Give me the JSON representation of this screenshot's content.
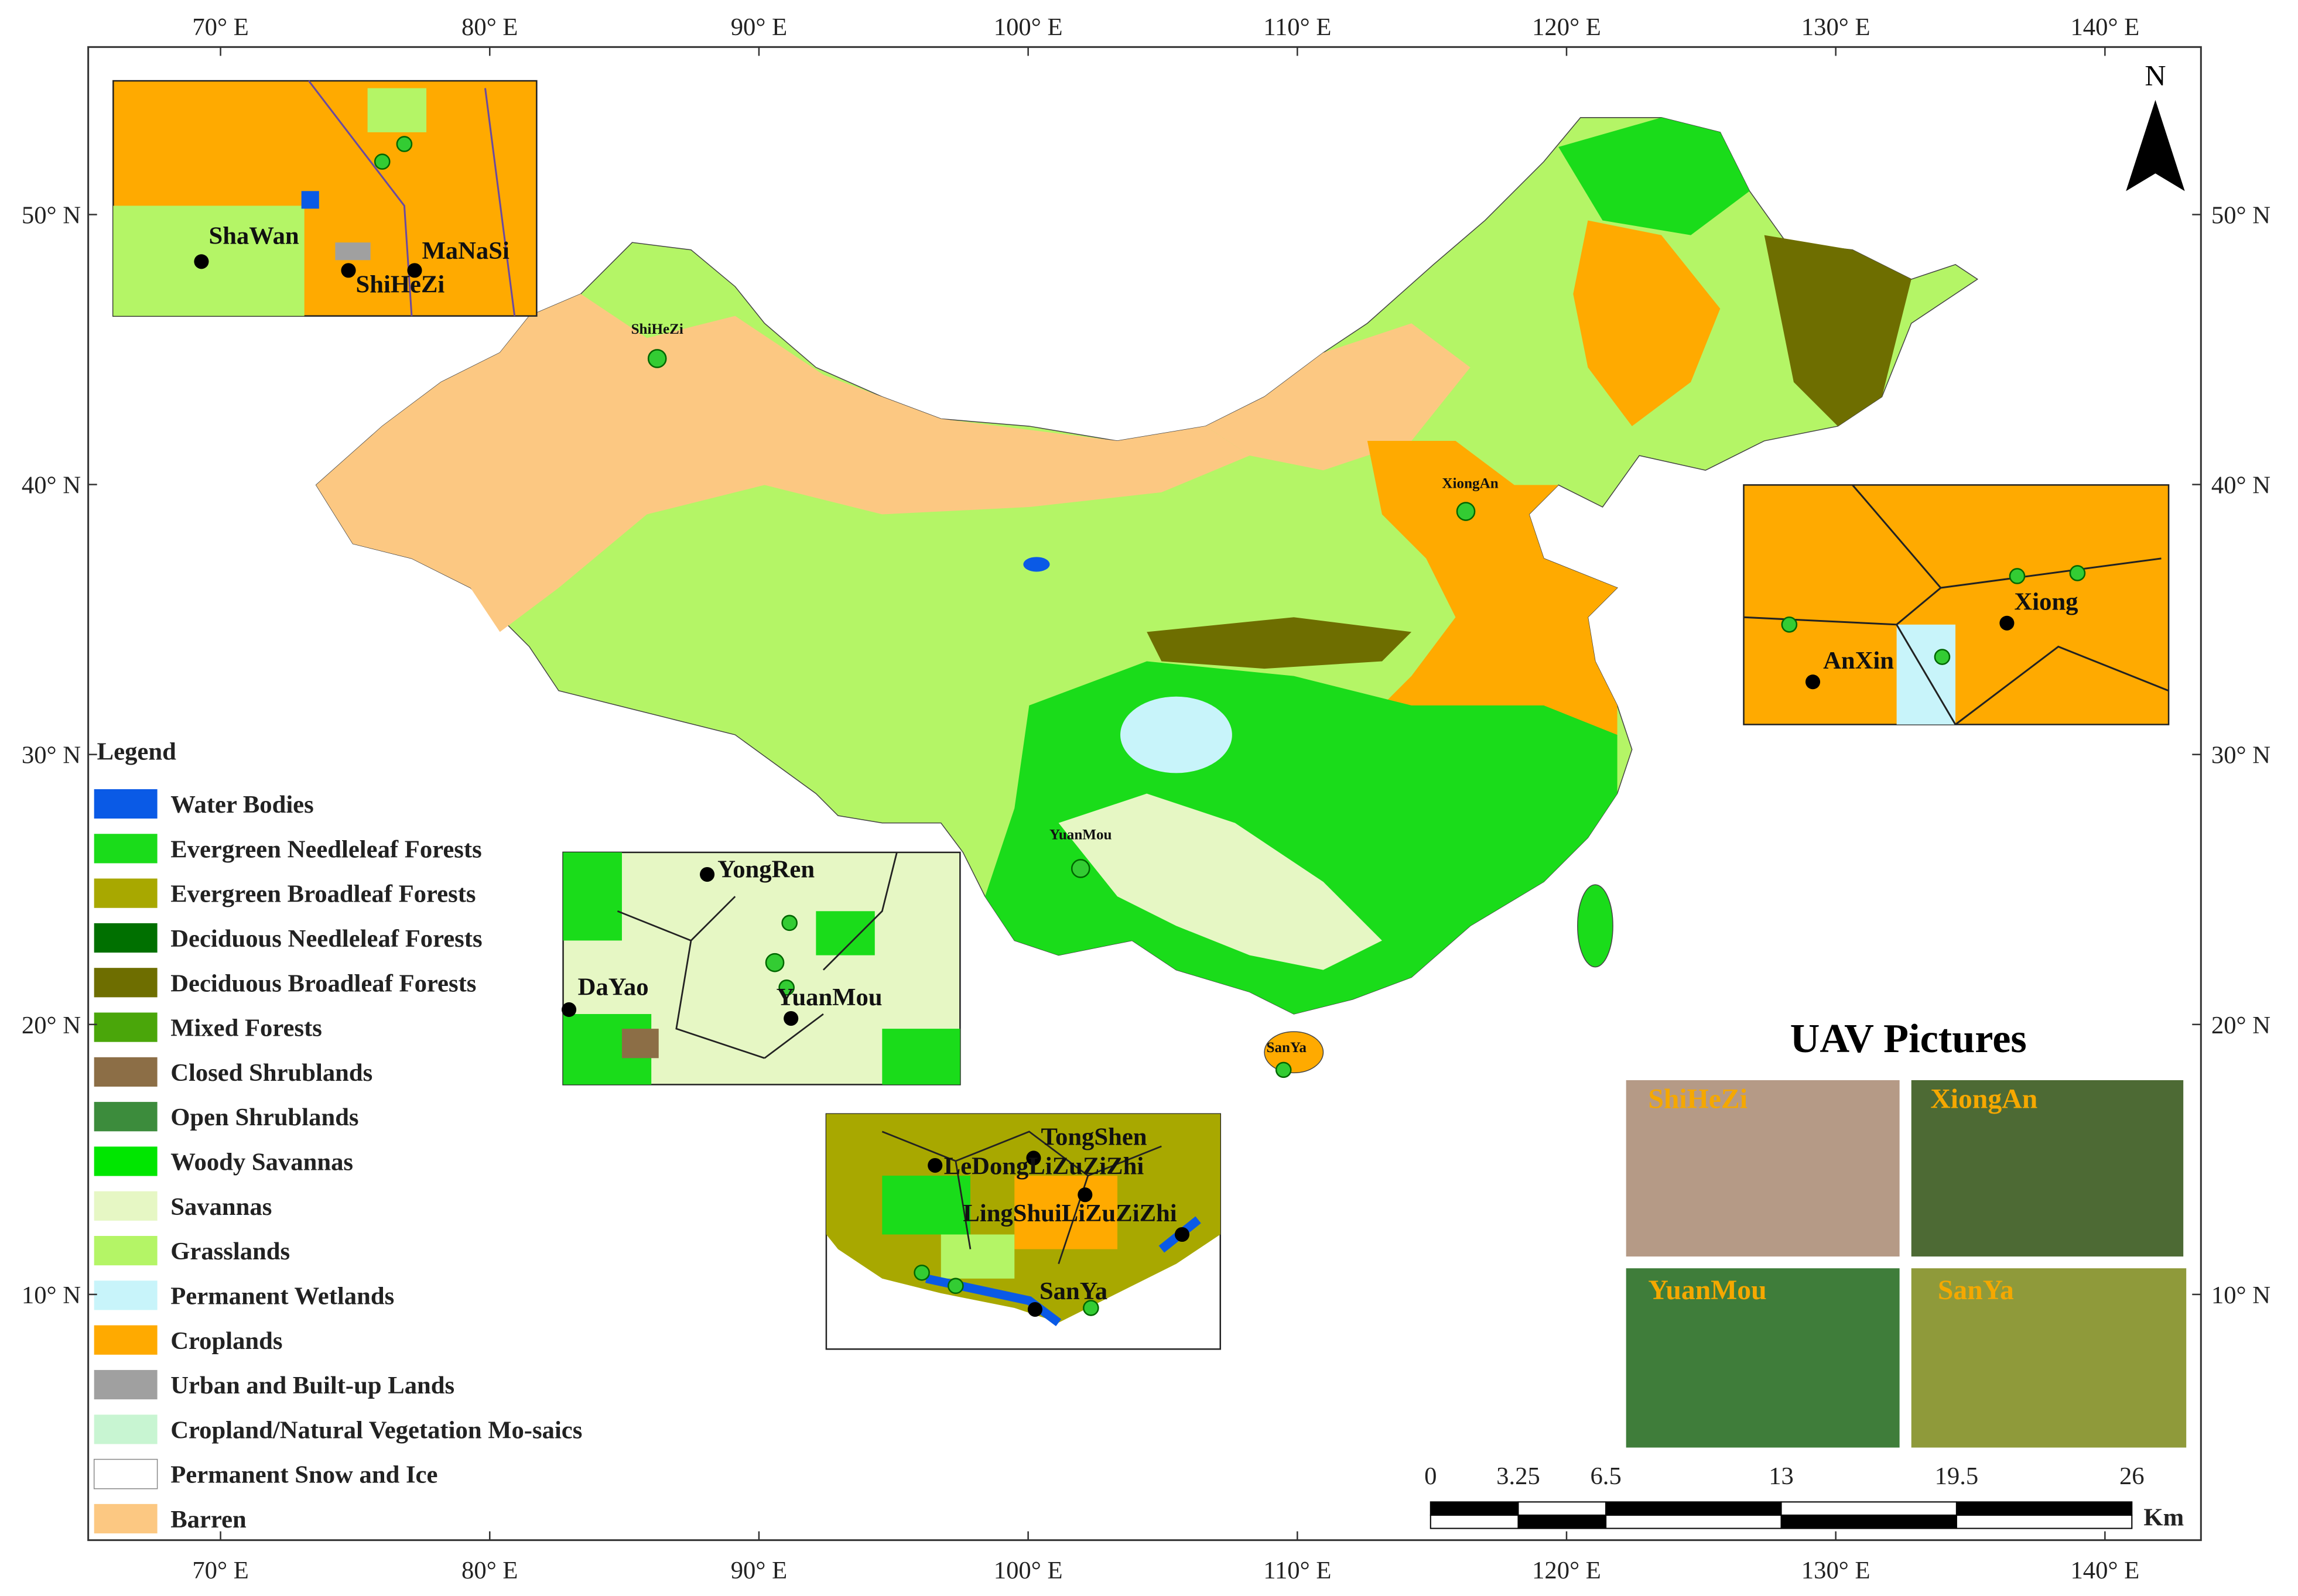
{
  "axes": {
    "lon_ticks": [
      {
        "value": 70,
        "label": "70° E"
      },
      {
        "value": 80,
        "label": "80° E"
      },
      {
        "value": 90,
        "label": "90° E"
      },
      {
        "value": 100,
        "label": "100° E"
      },
      {
        "value": 110,
        "label": "110° E"
      },
      {
        "value": 120,
        "label": "120° E"
      },
      {
        "value": 130,
        "label": "130° E"
      },
      {
        "value": 140,
        "label": "140° E"
      }
    ],
    "lat_ticks": [
      {
        "value": 50,
        "label": "50° N"
      },
      {
        "value": 40,
        "label": "40° N"
      },
      {
        "value": 30,
        "label": "30° N"
      },
      {
        "value": 20,
        "label": "20° N"
      },
      {
        "value": 10,
        "label": "10° N"
      }
    ]
  },
  "north": "N",
  "legend": {
    "title": "Legend",
    "items": [
      {
        "label": "Water Bodies",
        "color": "#0a5ae6"
      },
      {
        "label": "Evergreen Needleleaf Forests",
        "color": "#1adc1a"
      },
      {
        "label": "Evergreen Broadleaf Forests",
        "color": "#a8a800"
      },
      {
        "label": "Deciduous Needleleaf Forests",
        "color": "#007000"
      },
      {
        "label": "Deciduous Broadleaf Forests",
        "color": "#6e6e00"
      },
      {
        "label": "Mixed Forests",
        "color": "#4aa60a"
      },
      {
        "label": "Closed Shrublands",
        "color": "#8c6e46"
      },
      {
        "label": "Open Shrublands",
        "color": "#3c8c3c"
      },
      {
        "label": "Woody Savannas",
        "color": "#00e600"
      },
      {
        "label": "Savannas",
        "color": "#e6f7c4"
      },
      {
        "label": "Grasslands",
        "color": "#b4f566"
      },
      {
        "label": "Permanent Wetlands",
        "color": "#c8f4fa"
      },
      {
        "label": "Croplands",
        "color": "#ffaa00"
      },
      {
        "label": "Urban and Built-up Lands",
        "color": "#a0a0a0"
      },
      {
        "label": "Cropland/Natural Vegetation Mo-saics",
        "color": "#c8f5d2"
      },
      {
        "label": "Permanent Snow and Ice",
        "color": "#ffffff"
      },
      {
        "label": "Barren",
        "color": "#fcc882"
      }
    ]
  },
  "sites": [
    "ShiHeZi",
    "XiongAn",
    "YuanMou",
    "SanYa"
  ],
  "insets": [
    {
      "labels": [
        "ShaWan",
        "MaNaSi",
        "ShiHeZi"
      ]
    },
    {
      "labels": [
        "Xiong",
        "AnXin"
      ]
    },
    {
      "labels": [
        "YongRen",
        "DaYao",
        "YuanMou"
      ]
    },
    {
      "labels": [
        "TongShen",
        "LeDongLiZuZiZhi",
        "LingShuiLiZuZiZhi",
        "SanYa"
      ]
    }
  ],
  "uav": {
    "title": "UAV Pictures",
    "labels": [
      "ShiHeZi",
      "XiongAn",
      "YuanMou",
      "SanYa"
    ]
  },
  "scale_bar": {
    "ticks": [
      0,
      3.25,
      6.5,
      13,
      19.5,
      26
    ],
    "unit": "Km"
  }
}
